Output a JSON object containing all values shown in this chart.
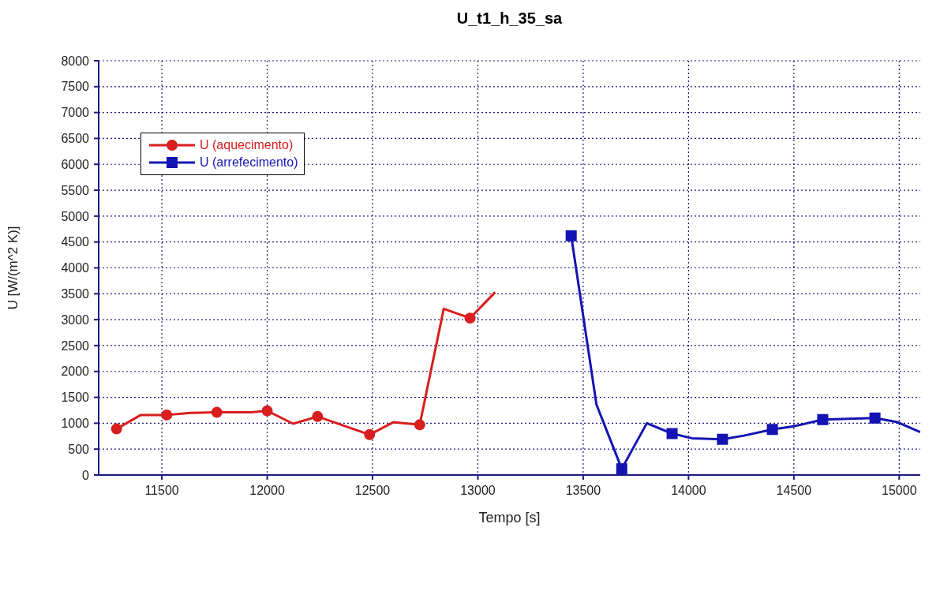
{
  "chart_data": {
    "type": "line",
    "title": "U_t1_h_35_sa",
    "xlabel": "Tempo [s]",
    "ylabel": "U [W/(m^2 K)]",
    "xlim": [
      11200,
      15100
    ],
    "xticks": [
      11500,
      12000,
      12500,
      13000,
      13500,
      14000,
      14500,
      15000
    ],
    "ylim": [
      0,
      8000
    ],
    "yticks": [
      0,
      500,
      1000,
      1500,
      2000,
      2500,
      3000,
      3500,
      4000,
      4500,
      5000,
      5500,
      6000,
      6500,
      7000,
      7500,
      8000
    ],
    "grid": true,
    "legend": "top left",
    "line_style": "solid",
    "series": [
      {
        "name": "U (aquecimento)",
        "type": "line",
        "marker": "none",
        "color": "#d81e1e",
        "x": [
          11285,
          11400,
          11523,
          11639,
          11761,
          11925,
          12000,
          12123,
          12239,
          12486,
          12599,
          12724,
          12838,
          12963,
          13082
        ],
        "values": [
          890,
          1160,
          1160,
          1200,
          1210,
          1210,
          1240,
          990,
          1130,
          780,
          1020,
          970,
          3210,
          3030,
          3530
        ]
      },
      {
        "type": "scatter",
        "marker": "circle",
        "color": "#d81e1e",
        "x": [
          11285,
          11523,
          11761,
          12000,
          12239,
          12486,
          12724,
          12963
        ],
        "values": [
          890,
          1160,
          1210,
          1240,
          1130,
          780,
          970,
          3030
        ]
      },
      {
        "name": "U (arrefecimento)",
        "type": "line",
        "marker": "none",
        "color": "#1414b4",
        "x": [
          13443,
          13563,
          13683,
          13802,
          13922,
          14016,
          14161,
          14262,
          14398,
          14500,
          14637,
          14885,
          14992,
          15100
        ],
        "values": [
          4620,
          1360,
          120,
          1000,
          800,
          710,
          690,
          760,
          880,
          940,
          1070,
          1100,
          1020,
          830
        ]
      },
      {
        "type": "scatter",
        "marker": "square",
        "color": "#1414b4",
        "x": [
          13443,
          13683,
          13922,
          14161,
          14398,
          14637,
          14885
        ],
        "values": [
          4620,
          120,
          800,
          690,
          880,
          1070,
          1100
        ]
      }
    ]
  }
}
